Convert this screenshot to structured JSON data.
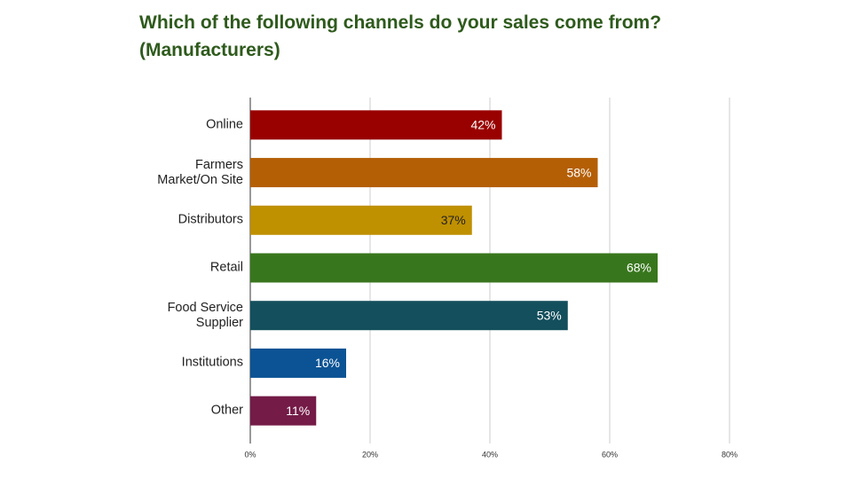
{
  "chart_data": {
    "type": "bar",
    "orientation": "horizontal",
    "title": "Which of the following channels do your sales come from? (Manufacturers)",
    "categories": [
      "Online",
      "Farmers Market/On Site",
      "Distributors",
      "Retail",
      "Food Service Supplier",
      "Institutions",
      "Other"
    ],
    "values": [
      42,
      58,
      37,
      68,
      53,
      16,
      11
    ],
    "value_labels": [
      "42%",
      "58%",
      "37%",
      "68%",
      "53%",
      "16%",
      "11%"
    ],
    "colors": [
      "#990000",
      "#b45f06",
      "#bf9000",
      "#38761d",
      "#134f5c",
      "#0b5394",
      "#741b47"
    ],
    "value_label_colors": [
      "#ffffff",
      "#ffffff",
      "#222222",
      "#ffffff",
      "#ffffff",
      "#ffffff",
      "#ffffff"
    ],
    "xlim": [
      0,
      80
    ],
    "xticks": [
      {
        "value": 0,
        "label": "0%"
      },
      {
        "value": 20,
        "label": "20%"
      },
      {
        "value": 40,
        "label": "40%"
      },
      {
        "value": 60,
        "label": "60%"
      },
      {
        "value": 80,
        "label": "80%"
      }
    ],
    "grid": true
  }
}
